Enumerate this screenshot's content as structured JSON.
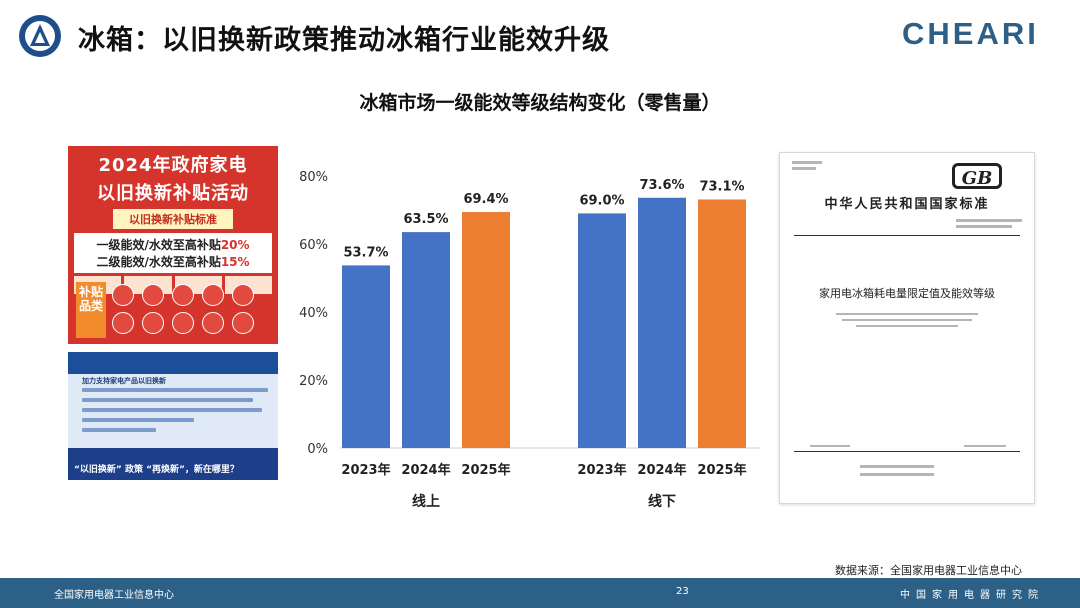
{
  "header": {
    "title": "冰箱：以旧换新政策推动冰箱行业能效升级",
    "brand": "CHEARI"
  },
  "chart_title": "冰箱市场一级能效等级结构变化（零售量）",
  "poster": {
    "line1": "2024年政府家电",
    "line2": "以旧换新补贴活动",
    "tag": "以旧换新补贴标准",
    "row1_text": "一级能效/水效至高补贴",
    "row1_value": "20%",
    "row2_text": "二级能效/水效至高补贴",
    "row2_value": "15%",
    "side": "补贴品类"
  },
  "news": {
    "subhead": "加力支持家电产品以旧换新",
    "ticker": "“以旧换新” 政策 “再焕新”，新在哪里？"
  },
  "gb_document": {
    "logo": "GB",
    "header": "中华人民共和国国家标准",
    "name": "家用电冰箱耗电量限定值及能效等级"
  },
  "source": "数据来源：全国家用电器工业信息中心",
  "footer": {
    "left": "全国家用电器工业信息中心",
    "page": "23",
    "right": "中国家用电器研究院"
  },
  "colors": {
    "blue": "#4472c4",
    "orange": "#ed7d31",
    "footer": "#2d6086",
    "brand": "#2e5f86"
  },
  "chart_data": {
    "type": "bar",
    "title": "冰箱市场一级能效等级结构变化（零售量）",
    "ylim": [
      0,
      80
    ],
    "y_ticks": [
      "0%",
      "20%",
      "40%",
      "60%",
      "80%"
    ],
    "grid": false,
    "groups": [
      {
        "name": "线上",
        "categories": [
          "2023年",
          "2024年",
          "2025年"
        ],
        "values": [
          53.7,
          63.5,
          69.4
        ],
        "labels": [
          "53.7%",
          "63.5%",
          "69.4%"
        ]
      },
      {
        "name": "线下",
        "categories": [
          "2023年",
          "2024年",
          "2025年"
        ],
        "values": [
          69.0,
          73.6,
          73.1
        ],
        "labels": [
          "69.0%",
          "73.6%",
          "73.1%"
        ]
      }
    ],
    "bar_colors": [
      "#4472c4",
      "#4472c4",
      "#ed7d31"
    ]
  }
}
